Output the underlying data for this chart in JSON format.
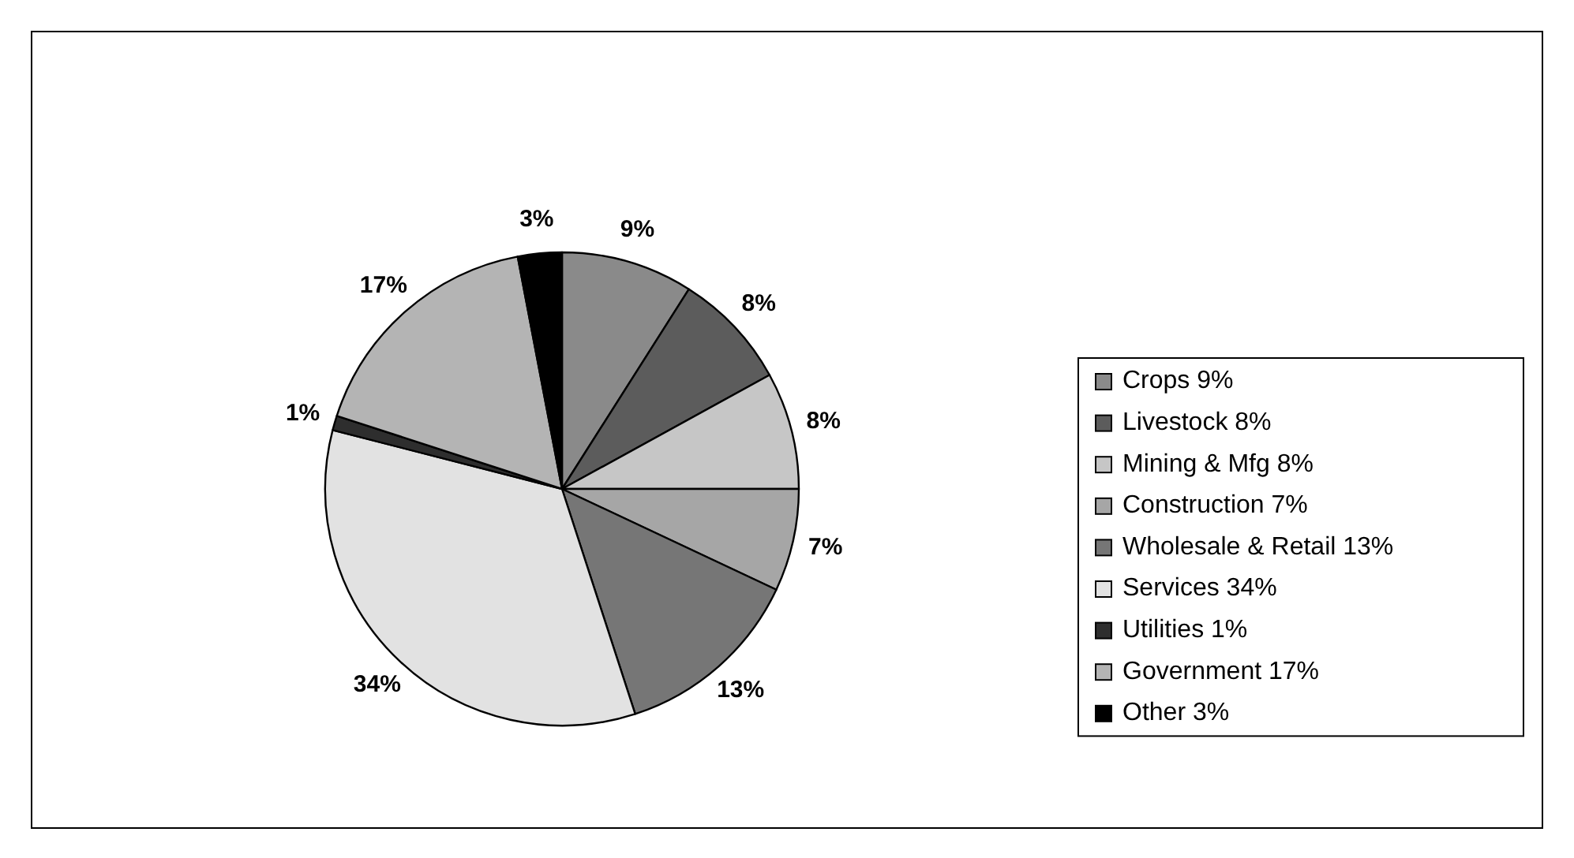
{
  "chart_data": {
    "type": "pie",
    "categories": [
      "Crops  9%",
      "Livestock  8%",
      "Mining & Mfg  8%",
      "Construction  7%",
      "Wholesale & Retail 13%",
      "Services  34%",
      "Utilities  1%",
      "Government  17%",
      "Other  3%"
    ],
    "values": [
      9,
      8,
      8,
      7,
      13,
      34,
      1,
      17,
      3
    ],
    "value_labels": [
      "9%",
      "8%",
      "8%",
      "7%",
      "13%",
      "34%",
      "1%",
      "17%",
      "3%"
    ],
    "colors": [
      "#8a8a8a",
      "#5c5c5c",
      "#c6c6c6",
      "#a6a6a6",
      "#767676",
      "#e2e2e2",
      "#2e2e2e",
      "#b4b4b4",
      "#000000"
    ],
    "legend": "right"
  }
}
